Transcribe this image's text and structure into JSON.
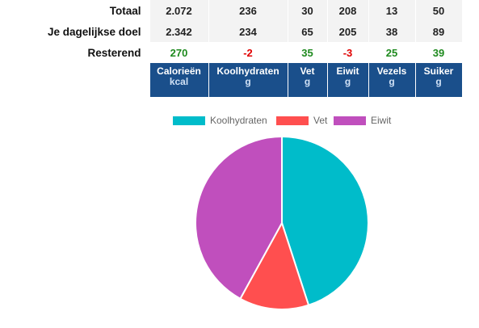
{
  "table": {
    "rows": [
      {
        "label": "Totaal",
        "values": [
          "2.072",
          "236",
          "30",
          "208",
          "13",
          "50"
        ]
      },
      {
        "label": "Je dagelijkse doel",
        "values": [
          "2.342",
          "234",
          "65",
          "205",
          "38",
          "89"
        ]
      },
      {
        "label": "Resterend",
        "values": [
          "270",
          "-2",
          "35",
          "-3",
          "25",
          "39"
        ]
      }
    ],
    "headers": [
      {
        "name": "Calorieën",
        "unit": "kcal"
      },
      {
        "name": "Koolhydraten",
        "unit": "g"
      },
      {
        "name": "Vet",
        "unit": "g"
      },
      {
        "name": "Eiwit",
        "unit": "g"
      },
      {
        "name": "Vezels",
        "unit": "g"
      },
      {
        "name": "Suiker",
        "unit": "g"
      }
    ],
    "colors": {
      "header_bg": "#1a4f8b",
      "positive": "#1e8a1e",
      "negative": "#e00000"
    }
  },
  "chart_data": {
    "type": "pie",
    "legend_position": "top",
    "series": [
      {
        "name": "Koolhydraten",
        "value": 45,
        "color": "#00bcca"
      },
      {
        "name": "Vet",
        "value": 13,
        "color": "#ff4f4f"
      },
      {
        "name": "Eiwit",
        "value": 42,
        "color": "#c04fbd"
      }
    ]
  }
}
